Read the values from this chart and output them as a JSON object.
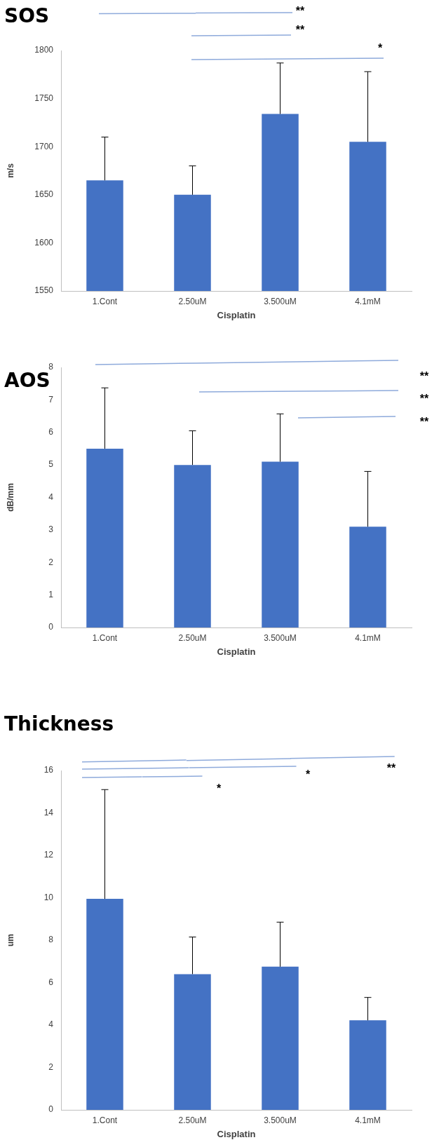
{
  "chart_data": [
    {
      "type": "bar",
      "title": "SOS",
      "xlabel": "Cisplatin",
      "ylabel": "m/s",
      "categories": [
        "1.Cont",
        "2.50uM",
        "3.500uM",
        "4.1mM"
      ],
      "values": [
        1665,
        1650,
        1734,
        1705
      ],
      "color": "#4472c4",
      "errors": [
        [
          1665,
          1710
        ],
        [
          1650,
          1680
        ],
        [
          1734,
          1787
        ],
        [
          1705,
          1778
        ]
      ],
      "ylim": [
        1550,
        1800
      ],
      "yticks": [
        1550,
        1600,
        1650,
        1700,
        1750,
        1800
      ],
      "grid": false,
      "legend": false,
      "annotations": [
        "**",
        "**",
        "*"
      ]
    },
    {
      "type": "bar",
      "title": "AOS",
      "xlabel": "Cisplatin",
      "ylabel": "dB/mm",
      "categories": [
        "1.Cont",
        "2.50uM",
        "3.500uM",
        "4.1mM"
      ],
      "values": [
        5.5,
        5.0,
        5.1,
        3.1
      ],
      "color": "#4472c4",
      "errors": [
        [
          5.5,
          7.37
        ],
        [
          5.0,
          6.05
        ],
        [
          5.1,
          6.57
        ],
        [
          3.1,
          4.8
        ]
      ],
      "ylim": [
        0,
        8
      ],
      "yticks": [
        0,
        1,
        2,
        3,
        4,
        5,
        6,
        7,
        8
      ],
      "grid": false,
      "legend": false,
      "annotations": [
        "**",
        "**",
        "**"
      ]
    },
    {
      "type": "bar",
      "title": "Thickness",
      "xlabel": "Cisplatin",
      "ylabel": "um",
      "categories": [
        "1.Cont",
        "2.50uM",
        "3.500uM",
        "4.1mM"
      ],
      "values": [
        9.95,
        6.4,
        6.75,
        4.22
      ],
      "color": "#4472c4",
      "errors": [
        [
          9.95,
          15.1
        ],
        [
          6.4,
          8.15
        ],
        [
          6.75,
          8.85
        ],
        [
          4.22,
          5.3
        ]
      ],
      "ylim": [
        0,
        16
      ],
      "yticks": [
        0,
        2,
        4,
        6,
        8,
        10,
        12,
        14,
        16
      ],
      "grid": false,
      "legend": false,
      "annotations": [
        "*",
        "*",
        "**"
      ]
    }
  ]
}
